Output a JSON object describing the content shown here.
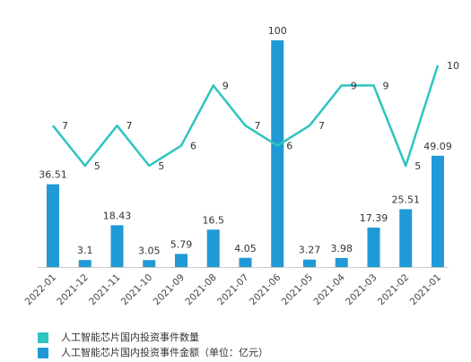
{
  "chart_data": {
    "type": "bar",
    "categories": [
      "2022-01",
      "2021-12",
      "2021-11",
      "2021-10",
      "2021-09",
      "2021-08",
      "2021-07",
      "2021-06",
      "2021-05",
      "2021-04",
      "2021-03",
      "2021-02",
      "2021-01"
    ],
    "series": [
      {
        "name": "人工智能芯片国内投资事件数量",
        "type": "line",
        "values": [
          7,
          5,
          7,
          5,
          6,
          9,
          7,
          6,
          7,
          9,
          9,
          5,
          10
        ],
        "color": "#2ec4c0"
      },
      {
        "name": "人工智能芯片国内投资事件金额（单位：亿元）",
        "type": "bar",
        "values": [
          36.51,
          3.1,
          18.43,
          3.05,
          5.79,
          16.5,
          4.05,
          100,
          3.27,
          3.98,
          17.39,
          25.51,
          49.09
        ],
        "labels": [
          "36.51",
          "3.1",
          "18.43",
          "3.05",
          "5.79",
          "16.5",
          "4.05",
          "100",
          "3.27",
          "3.98",
          "17.39",
          "25.51",
          "49.09"
        ],
        "color": "#1f9ad6"
      }
    ],
    "title": "",
    "xlabel": "",
    "ylabel": "",
    "ylim": [
      0,
      100
    ],
    "grid": false,
    "legend_position": "bottom-left"
  },
  "legend": {
    "count_label": "人工智能芯片国内投资事件数量",
    "amount_label": "人工智能芯片国内投资事件金额（单位：亿元）",
    "count_color": "#2ec4c0",
    "amount_color": "#1f9ad6"
  }
}
